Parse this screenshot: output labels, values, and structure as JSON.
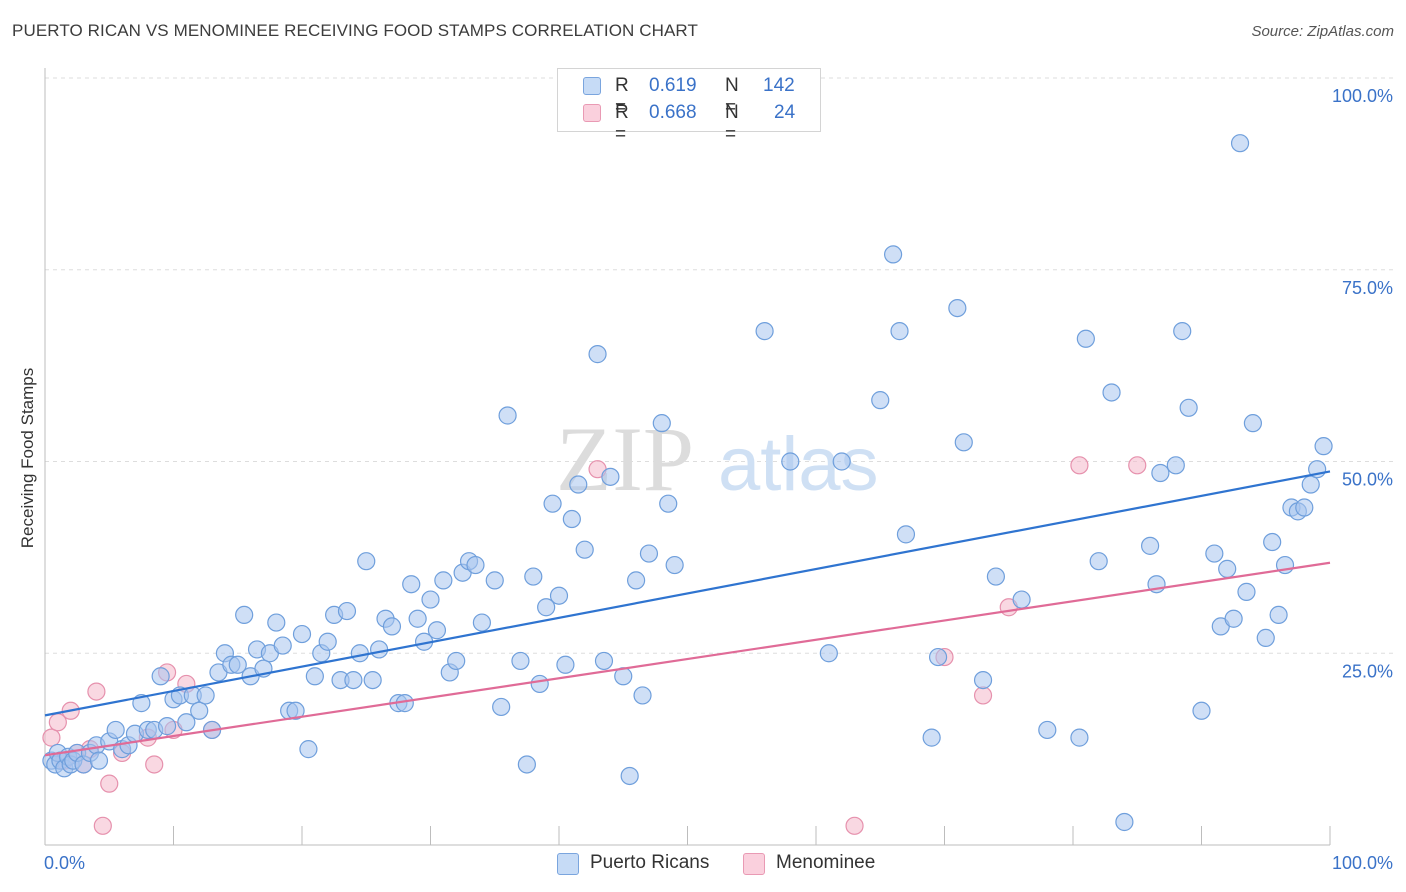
{
  "header": {
    "title": "PUERTO RICAN VS MENOMINEE RECEIVING FOOD STAMPS CORRELATION CHART",
    "source": "Source: ZipAtlas.com"
  },
  "watermark": {
    "part1": "ZIP",
    "part2": "atlas"
  },
  "legend": {
    "rows": [
      {
        "r_label": "R =",
        "r_value": "0.619",
        "n_label": "N =",
        "n_value": "142",
        "color": "#a7c5ee"
      },
      {
        "r_label": "R =",
        "r_value": "0.668",
        "n_label": "N =",
        "n_value": "24",
        "color": "#f4b8cb"
      }
    ]
  },
  "bottom_legend": [
    {
      "label": "Puerto Ricans",
      "color": "#a7c5ee"
    },
    {
      "label": "Menominee",
      "color": "#f4b8cb"
    }
  ],
  "colors": {
    "blue_fill": "#a7c5ee",
    "blue_stroke": "#6f9fdc",
    "blue_line": "#2f74d0",
    "pink_fill": "#f4b8cb",
    "pink_stroke": "#e691ad",
    "pink_line": "#e06b97",
    "axis_label": "#3a72c8",
    "grid": "#dddddd"
  },
  "chart_data": {
    "type": "scatter",
    "title": "PUERTO RICAN VS MENOMINEE RECEIVING FOOD STAMPS CORRELATION CHART",
    "xlabel": "",
    "ylabel": "Receiving Food Stamps",
    "xlim": [
      0,
      100
    ],
    "ylim": [
      0,
      100
    ],
    "x_tick_labels": [
      "0.0%",
      "100.0%"
    ],
    "y_ticks": [
      25,
      50,
      75,
      100
    ],
    "y_tick_labels": [
      "25.0%",
      "50.0%",
      "75.0%",
      "100.0%"
    ],
    "grid": true,
    "legend_position": "top-center",
    "series": [
      {
        "name": "Puerto Ricans",
        "r": 0.619,
        "n": 142,
        "trend": [
          [
            0,
            16.9
          ],
          [
            100,
            48.7
          ]
        ],
        "points": [
          [
            0.5,
            11
          ],
          [
            0.8,
            10.5
          ],
          [
            1,
            12
          ],
          [
            1.2,
            11
          ],
          [
            1.5,
            10
          ],
          [
            1.8,
            11.5
          ],
          [
            2,
            10.5
          ],
          [
            2.2,
            11
          ],
          [
            2.5,
            12
          ],
          [
            3,
            10.5
          ],
          [
            3.5,
            12
          ],
          [
            4,
            13
          ],
          [
            4.2,
            11
          ],
          [
            5,
            13.5
          ],
          [
            5.5,
            15
          ],
          [
            6,
            12.5
          ],
          [
            6.5,
            13
          ],
          [
            7,
            14.5
          ],
          [
            7.5,
            18.5
          ],
          [
            8,
            15
          ],
          [
            8.5,
            15
          ],
          [
            9,
            22
          ],
          [
            9.5,
            15.5
          ],
          [
            10,
            19
          ],
          [
            10.5,
            19.5
          ],
          [
            11,
            16
          ],
          [
            11.5,
            19.5
          ],
          [
            12,
            17.5
          ],
          [
            12.5,
            19.5
          ],
          [
            13,
            15
          ],
          [
            13.5,
            22.5
          ],
          [
            14,
            25
          ],
          [
            14.5,
            23.5
          ],
          [
            15,
            23.5
          ],
          [
            15.5,
            30
          ],
          [
            16,
            22
          ],
          [
            16.5,
            25.5
          ],
          [
            17,
            23
          ],
          [
            17.5,
            25
          ],
          [
            18,
            29
          ],
          [
            18.5,
            26
          ],
          [
            19,
            17.5
          ],
          [
            19.5,
            17.5
          ],
          [
            20,
            27.5
          ],
          [
            20.5,
            12.5
          ],
          [
            21,
            22
          ],
          [
            21.5,
            25
          ],
          [
            22,
            26.5
          ],
          [
            22.5,
            30
          ],
          [
            23,
            21.5
          ],
          [
            23.5,
            30.5
          ],
          [
            24,
            21.5
          ],
          [
            24.5,
            25
          ],
          [
            25,
            37
          ],
          [
            25.5,
            21.5
          ],
          [
            26,
            25.5
          ],
          [
            26.5,
            29.5
          ],
          [
            27,
            28.5
          ],
          [
            27.5,
            18.5
          ],
          [
            28,
            18.5
          ],
          [
            28.5,
            34
          ],
          [
            29,
            29.5
          ],
          [
            29.5,
            26.5
          ],
          [
            30,
            32
          ],
          [
            30.5,
            28
          ],
          [
            31,
            34.5
          ],
          [
            31.5,
            22.5
          ],
          [
            32,
            24
          ],
          [
            32.5,
            35.5
          ],
          [
            33,
            37
          ],
          [
            33.5,
            36.5
          ],
          [
            34,
            29
          ],
          [
            35,
            34.5
          ],
          [
            35.5,
            18
          ],
          [
            36,
            56
          ],
          [
            37,
            24
          ],
          [
            37.5,
            10.5
          ],
          [
            38,
            35
          ],
          [
            38.5,
            21
          ],
          [
            39,
            31
          ],
          [
            39.5,
            44.5
          ],
          [
            40,
            32.5
          ],
          [
            40.5,
            23.5
          ],
          [
            41,
            42.5
          ],
          [
            41.5,
            47
          ],
          [
            42,
            38.5
          ],
          [
            43,
            64
          ],
          [
            43.5,
            24
          ],
          [
            44,
            48
          ],
          [
            45,
            22
          ],
          [
            45.5,
            9
          ],
          [
            46,
            34.5
          ],
          [
            46.5,
            19.5
          ],
          [
            47,
            38
          ],
          [
            48,
            55
          ],
          [
            48.5,
            44.5
          ],
          [
            49,
            36.5
          ],
          [
            56,
            67
          ],
          [
            58,
            50
          ],
          [
            61,
            25
          ],
          [
            62,
            50
          ],
          [
            65,
            58
          ],
          [
            66,
            77
          ],
          [
            66.5,
            67
          ],
          [
            67,
            40.5
          ],
          [
            69,
            14
          ],
          [
            69.5,
            24.5
          ],
          [
            71,
            70
          ],
          [
            71.5,
            52.5
          ],
          [
            73,
            21.5
          ],
          [
            74,
            35
          ],
          [
            76,
            32
          ],
          [
            78,
            15
          ],
          [
            80.5,
            14
          ],
          [
            81,
            66
          ],
          [
            82,
            37
          ],
          [
            83,
            59
          ],
          [
            84,
            3
          ],
          [
            86,
            39
          ],
          [
            86.5,
            34
          ],
          [
            86.8,
            48.5
          ],
          [
            88,
            49.5
          ],
          [
            88.5,
            67
          ],
          [
            89,
            57
          ],
          [
            90,
            17.5
          ],
          [
            91,
            38
          ],
          [
            91.5,
            28.5
          ],
          [
            92,
            36
          ],
          [
            92.5,
            29.5
          ],
          [
            93,
            91.5
          ],
          [
            93.5,
            33
          ],
          [
            94,
            55
          ],
          [
            95,
            27
          ],
          [
            95.5,
            39.5
          ],
          [
            96,
            30
          ],
          [
            96.5,
            36.5
          ],
          [
            97,
            44
          ],
          [
            97.5,
            43.5
          ],
          [
            98,
            44
          ],
          [
            98.5,
            47
          ],
          [
            99,
            49
          ],
          [
            99.5,
            52
          ]
        ]
      },
      {
        "name": "Menominee",
        "r": 0.668,
        "n": 24,
        "trend": [
          [
            0,
            11.7
          ],
          [
            100,
            36.8
          ]
        ],
        "points": [
          [
            0.5,
            14
          ],
          [
            1,
            16
          ],
          [
            1.5,
            11
          ],
          [
            2,
            17.5
          ],
          [
            2.5,
            12
          ],
          [
            3,
            10.5
          ],
          [
            3.5,
            12.5
          ],
          [
            4,
            20
          ],
          [
            4.5,
            2.5
          ],
          [
            5,
            8
          ],
          [
            6,
            12
          ],
          [
            8,
            14
          ],
          [
            8.5,
            10.5
          ],
          [
            9.5,
            22.5
          ],
          [
            10,
            15
          ],
          [
            11,
            21
          ],
          [
            13,
            15
          ],
          [
            43,
            49
          ],
          [
            63,
            2.5
          ],
          [
            70,
            24.5
          ],
          [
            73,
            19.5
          ],
          [
            75,
            31
          ],
          [
            80.5,
            49.5
          ],
          [
            85,
            49.5
          ]
        ]
      }
    ]
  }
}
